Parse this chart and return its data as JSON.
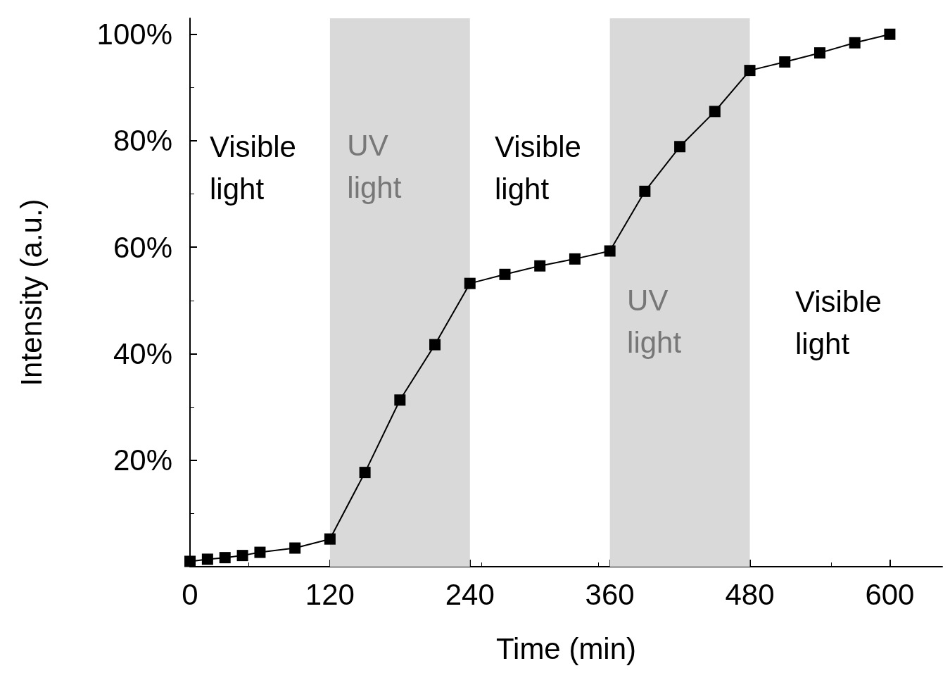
{
  "chart_data": {
    "type": "line",
    "xlabel": "Time (min)",
    "ylabel": "Intensity (a.u.)",
    "x": [
      0,
      15,
      30,
      45,
      60,
      90,
      120,
      150,
      180,
      210,
      240,
      270,
      300,
      330,
      360,
      390,
      420,
      450,
      480,
      510,
      540,
      570,
      600
    ],
    "series": [
      {
        "color": "#000000",
        "values": [
          1,
          1.4,
          1.7,
          2.1,
          2.7,
          3.5,
          5.2,
          17.7,
          31.3,
          41.7,
          53.2,
          54.9,
          56.5,
          57.8,
          59.3,
          70.5,
          78.9,
          85.5,
          93.2,
          94.8,
          96.5,
          98.4,
          100
        ]
      }
    ],
    "xlim": [
      0,
      645
    ],
    "xticks": [
      0,
      120,
      240,
      360,
      480,
      600
    ],
    "ylim": [
      0,
      103
    ],
    "yticks": [
      {
        "value": 20,
        "label": "20%"
      },
      {
        "value": 40,
        "label": "40%"
      },
      {
        "value": 60,
        "label": "60%"
      },
      {
        "value": 80,
        "label": "80%"
      },
      {
        "value": 100,
        "label": "100%"
      }
    ],
    "bands": [
      {
        "axis": "x",
        "from": 120,
        "to": 240,
        "label": "UV\nlight",
        "color": "#d9d9d9"
      },
      {
        "axis": "x",
        "from": 360,
        "to": 480,
        "label": "UV\nlight",
        "color": "#d9d9d9"
      }
    ],
    "annotations": [
      "Visible\nlight",
      "Visible\nlight",
      "Visible\nlight"
    ],
    "marker": "square",
    "line_style": "solid"
  }
}
